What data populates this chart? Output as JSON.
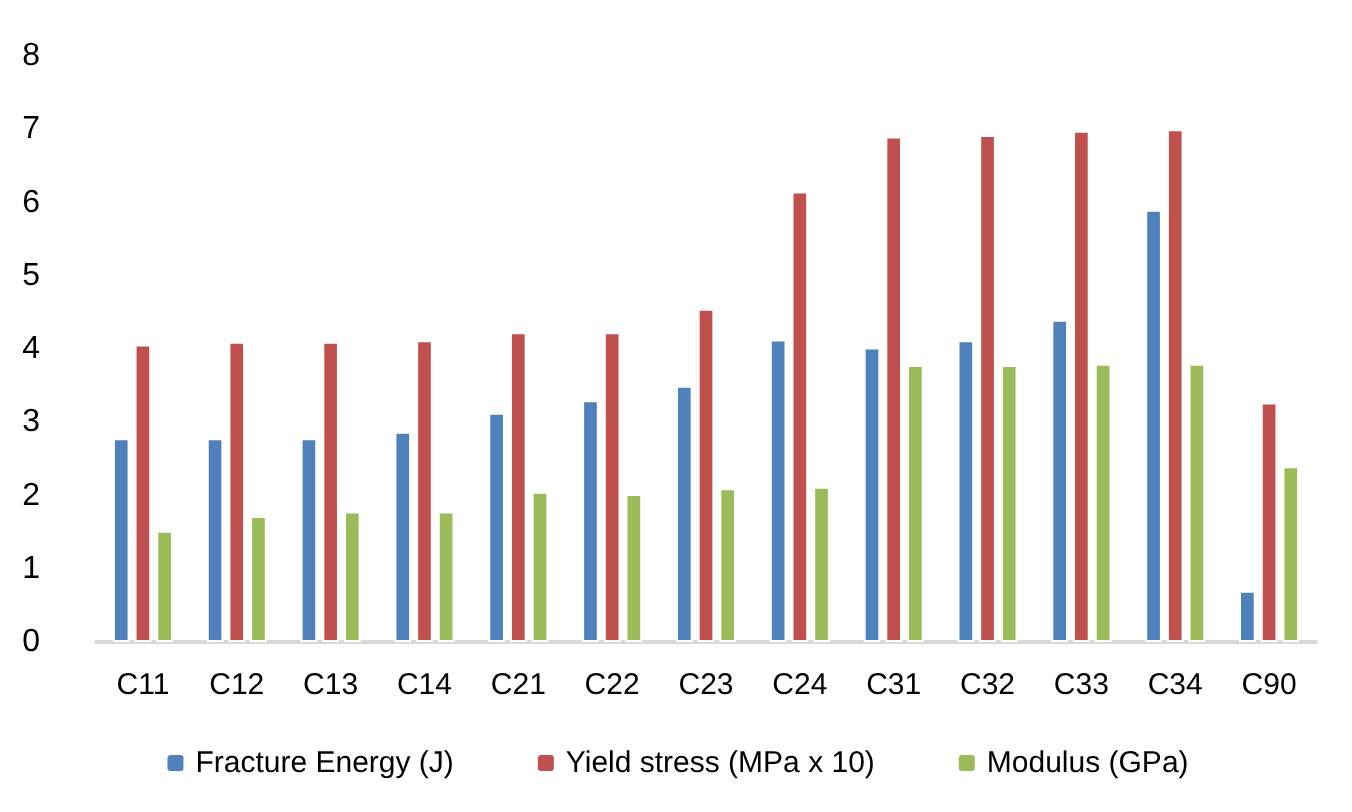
{
  "chart_data": {
    "type": "bar",
    "categories": [
      "C11",
      "C12",
      "C13",
      "C14",
      "C21",
      "C22",
      "C23",
      "C24",
      "C31",
      "C32",
      "C33",
      "C34",
      "C90"
    ],
    "series": [
      {
        "name": "Fracture Energy (J)",
        "color": "#4f81bd",
        "values": [
          2.78,
          2.78,
          2.78,
          2.87,
          3.13,
          3.3,
          3.5,
          4.13,
          4.02,
          4.12,
          4.4,
          5.9,
          0.7
        ]
      },
      {
        "name": "Yield stress (MPa x 10)",
        "color": "#c0504d",
        "values": [
          4.06,
          4.1,
          4.1,
          4.12,
          4.23,
          4.23,
          4.55,
          6.15,
          6.9,
          6.92,
          6.98,
          7.0,
          3.27
        ]
      },
      {
        "name": "Modulus (GPa)",
        "color": "#9bbb59",
        "values": [
          1.52,
          1.72,
          1.78,
          1.78,
          2.05,
          2.02,
          2.1,
          2.12,
          3.78,
          3.78,
          3.8,
          3.8,
          2.4
        ]
      }
    ],
    "ylim": [
      0,
      8
    ],
    "yticks": [
      0,
      1,
      2,
      3,
      4,
      5,
      6,
      7,
      8
    ],
    "grid": false,
    "legend": "bottom"
  }
}
